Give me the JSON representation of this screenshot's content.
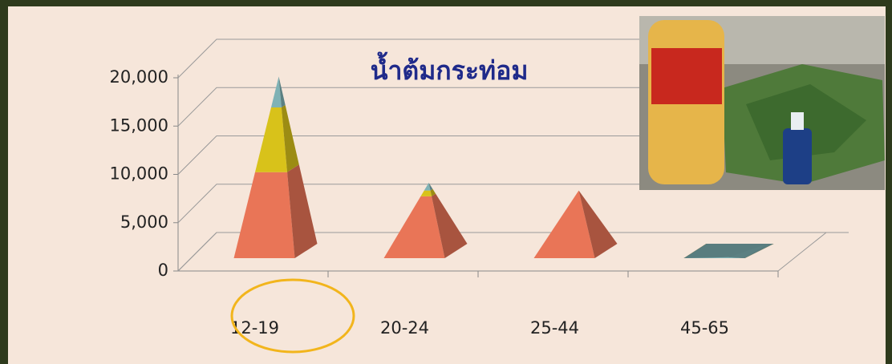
{
  "chart_data": {
    "type": "pyramid-3d-stacked",
    "title": "น้ำต้มกระท่อม",
    "categories": [
      "12-19",
      "20-24",
      "25-44",
      "45-65"
    ],
    "series": [
      {
        "color": "#e97557",
        "values": [
          8900,
          6400,
          7000,
          0
        ]
      },
      {
        "color": "#d8c21a",
        "values": [
          6700,
          600,
          0,
          0
        ]
      },
      {
        "color": "#7fb2b5",
        "values": [
          3200,
          800,
          0,
          100
        ]
      }
    ],
    "ylim": [
      0,
      20000
    ],
    "yticks": [
      {
        "value": 0,
        "label": "0"
      },
      {
        "value": 5000,
        "label": "5,000"
      },
      {
        "value": 10000,
        "label": "10,000"
      },
      {
        "value": 15000,
        "label": "15,000"
      },
      {
        "value": 20000,
        "label": "20,000"
      }
    ],
    "grid": true
  }
}
